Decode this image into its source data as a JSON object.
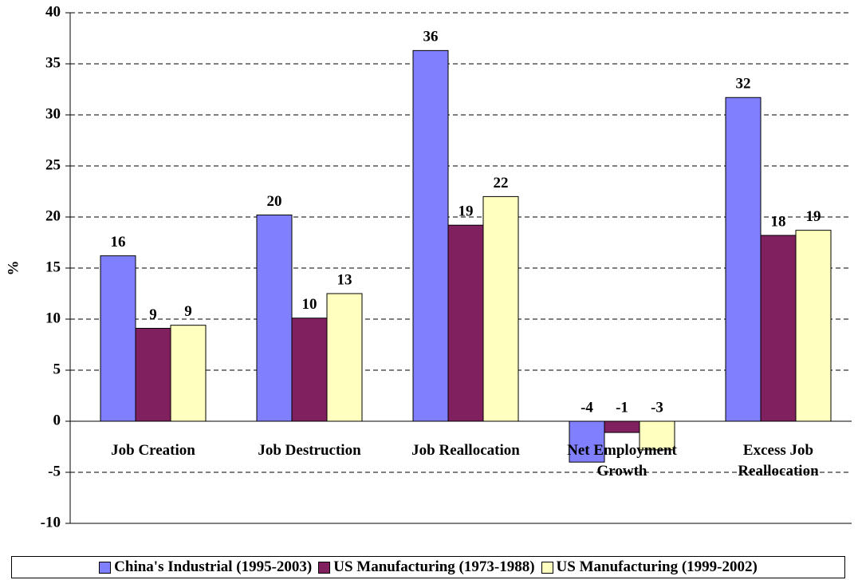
{
  "chart_data": {
    "type": "bar",
    "y_label": "%",
    "categories": [
      "Job Creation",
      "Job Destruction",
      "Job Reallocation",
      "Net Employment Growth",
      "Excess Job Reallocation"
    ],
    "series": [
      {
        "name": "China's Industrial (1995-2003)",
        "color": "#8080ff",
        "values": [
          16.2,
          20.2,
          36.3,
          -4.0,
          31.7
        ],
        "value_labels": [
          "16",
          "20",
          "36",
          "-4",
          "32"
        ]
      },
      {
        "name": "US Manufacturing (1973-1988)",
        "color": "#80205f",
        "values": [
          9.1,
          10.1,
          19.2,
          -1.1,
          18.2
        ],
        "value_labels": [
          "9",
          "10",
          "19",
          "-1",
          "18"
        ]
      },
      {
        "name": "US Manufacturing (1999-2002)",
        "color": "#ffffc0",
        "values": [
          9.4,
          12.5,
          22.0,
          -2.8,
          18.7
        ],
        "value_labels": [
          "9",
          "13",
          "22",
          "-3",
          "19"
        ]
      }
    ],
    "ylim": [
      -10,
      40
    ],
    "yticks": [
      -10,
      -5,
      0,
      5,
      10,
      15,
      20,
      25,
      30,
      35,
      40
    ],
    "grid": true
  }
}
